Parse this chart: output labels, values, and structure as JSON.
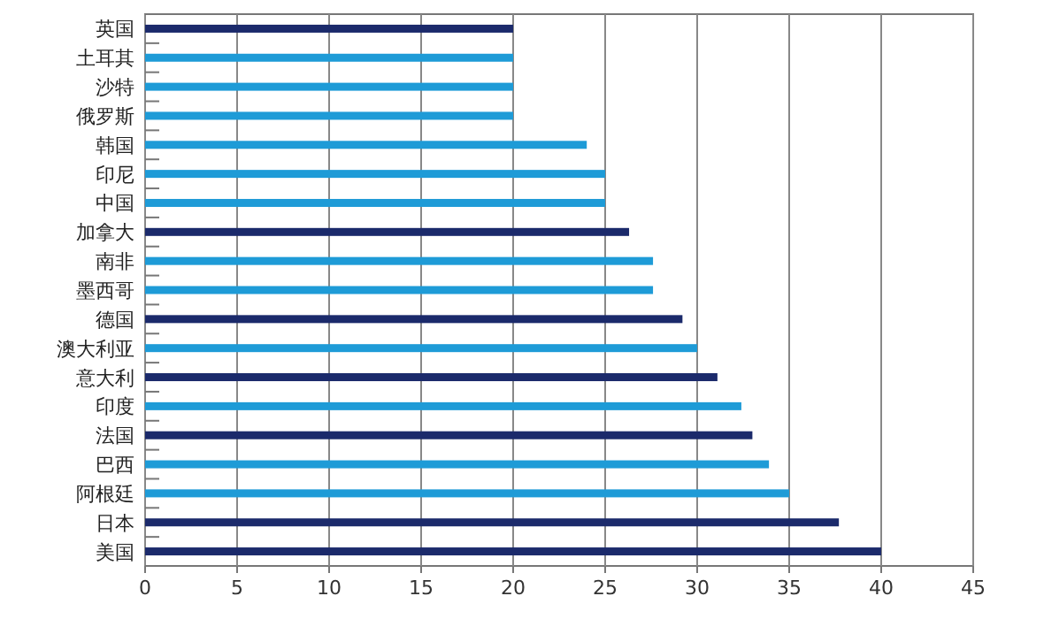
{
  "chart_data": {
    "type": "bar",
    "orientation": "horizontal",
    "categories": [
      "英国",
      "土耳其",
      "沙特",
      "俄罗斯",
      "韩国",
      "印尼",
      "中国",
      "加拿大",
      "南非",
      "墨西哥",
      "德国",
      "澳大利亚",
      "意大利",
      "印度",
      "法国",
      "巴西",
      "阿根廷",
      "日本",
      "美国"
    ],
    "values": [
      20,
      20,
      20,
      20,
      24,
      25,
      25,
      26.3,
      27.6,
      27.6,
      29.2,
      30,
      31.1,
      32.4,
      33,
      33.9,
      35,
      37.7,
      40
    ],
    "colors": [
      "#1b2a6b",
      "#1e9bd7",
      "#1e9bd7",
      "#1e9bd7",
      "#1e9bd7",
      "#1e9bd7",
      "#1e9bd7",
      "#1b2a6b",
      "#1e9bd7",
      "#1e9bd7",
      "#1b2a6b",
      "#1e9bd7",
      "#1b2a6b",
      "#1e9bd7",
      "#1b2a6b",
      "#1e9bd7",
      "#1e9bd7",
      "#1b2a6b",
      "#1b2a6b"
    ],
    "xlim": [
      0,
      45
    ],
    "xticks": [
      0,
      5,
      10,
      15,
      20,
      25,
      30,
      35,
      40,
      45
    ],
    "grid": "x"
  }
}
